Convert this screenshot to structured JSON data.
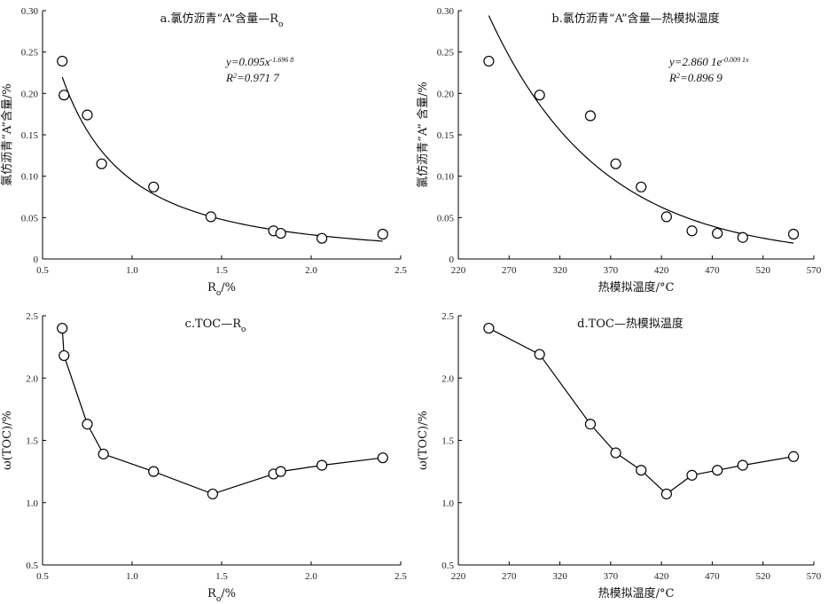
{
  "chart_data": [
    {
      "id": "a",
      "type": "scatter",
      "title": "a.氯仿沥青“A”含量—R",
      "title_sub": "o",
      "xlabel": "R",
      "xlabel_sub": "o",
      "xlabel_suffix": "/%",
      "ylabel": "氯仿沥青“A”含量/%",
      "xlim": [
        0.5,
        2.5
      ],
      "ylim": [
        0,
        0.3
      ],
      "xticks": [
        "0.5",
        "1.0",
        "1.5",
        "2.0",
        "2.5"
      ],
      "yticks": [
        "0",
        "0.05",
        "0.10",
        "0.15",
        "0.20",
        "0.25",
        "0.30"
      ],
      "x": [
        0.61,
        0.62,
        0.75,
        0.83,
        1.12,
        1.44,
        1.79,
        1.83,
        2.06,
        2.4
      ],
      "y": [
        0.239,
        0.198,
        0.174,
        0.115,
        0.087,
        0.051,
        0.034,
        0.031,
        0.025,
        0.03
      ],
      "fit": {
        "a": 0.095,
        "b": -1.6968,
        "form": "power",
        "x_range": [
          0.61,
          2.4
        ]
      },
      "equation": "y=0.095x",
      "equation_exp": "-1.696 8",
      "r2_label": "R",
      "r2_value": "=0.971 7"
    },
    {
      "id": "b",
      "type": "scatter",
      "title": "b.氯仿沥青“A”含量—热模拟温度",
      "xlabel": "热模拟温度/°C",
      "ylabel": "氯仿沥青“A” 含量/%",
      "xlim": [
        220,
        570
      ],
      "ylim": [
        0,
        0.3
      ],
      "xticks": [
        "220",
        "270",
        "320",
        "370",
        "420",
        "470",
        "520",
        "570"
      ],
      "yticks": [
        "0",
        "0.05",
        "0.10",
        "0.15",
        "0.20",
        "0.25",
        "0.30"
      ],
      "x": [
        250,
        300,
        350,
        375,
        400,
        425,
        450,
        475,
        500,
        550
      ],
      "y": [
        0.239,
        0.198,
        0.173,
        0.115,
        0.087,
        0.051,
        0.034,
        0.031,
        0.026,
        0.03
      ],
      "fit": {
        "a": 2.8601,
        "b": -0.0091,
        "form": "exponential",
        "x_range": [
          250,
          550
        ]
      },
      "equation": "y=2.860 1e",
      "equation_exp": "-0.009 1x",
      "r2_label": "R",
      "r2_value": "=0.896 9"
    },
    {
      "id": "c",
      "type": "line",
      "title": "c.TOC—R",
      "title_sub": "o",
      "xlabel": "R",
      "xlabel_sub": "o",
      "xlabel_suffix": "/%",
      "ylabel": "ω(TOC)/%",
      "xlim": [
        0.5,
        2.5
      ],
      "ylim": [
        0.5,
        2.5
      ],
      "xticks": [
        "0.5",
        "1.0",
        "1.5",
        "2.0",
        "2.5"
      ],
      "yticks": [
        "0.5",
        "1.0",
        "1.5",
        "2.0",
        "2.5"
      ],
      "x": [
        0.61,
        0.62,
        0.75,
        0.84,
        1.12,
        1.45,
        1.79,
        1.83,
        2.06,
        2.4
      ],
      "y": [
        2.4,
        2.18,
        1.63,
        1.39,
        1.25,
        1.07,
        1.23,
        1.25,
        1.3,
        1.36
      ]
    },
    {
      "id": "d",
      "type": "line",
      "title": "d.TOC—热模拟温度",
      "xlabel": "热模拟温度/°C",
      "ylabel": "ω(TOC)/%",
      "xlim": [
        220,
        570
      ],
      "ylim": [
        0.5,
        2.5
      ],
      "xticks": [
        "220",
        "270",
        "320",
        "370",
        "420",
        "470",
        "520",
        "570"
      ],
      "yticks": [
        "0.5",
        "1.0",
        "1.5",
        "2.0",
        "2.5"
      ],
      "x": [
        250,
        300,
        350,
        375,
        400,
        425,
        450,
        475,
        500,
        550
      ],
      "y": [
        2.4,
        2.19,
        1.63,
        1.4,
        1.26,
        1.07,
        1.22,
        1.26,
        1.3,
        1.37
      ]
    }
  ]
}
